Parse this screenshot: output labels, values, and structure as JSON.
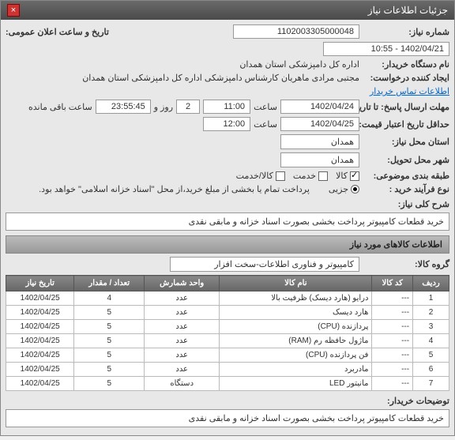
{
  "window": {
    "title": "جزئیات اطلاعات نیاز"
  },
  "fields": {
    "need_no_label": "شماره نیاز:",
    "need_no": "1102003305000048",
    "announce_label": "تاریخ و ساعت اعلان عمومی:",
    "announce_value": "1402/04/21 - 10:55",
    "buyer_org_label": "نام دستگاه خریدار:",
    "buyer_org": "اداره کل دامپزشکی استان همدان",
    "creator_label": "ایجاد کننده درخواست:",
    "creator": "مجتبی مرادی ماهریان کارشناس دامپزشکی اداره کل دامپزشکی استان همدان",
    "contact_link": "اطلاعات تماس خریدار",
    "reply_deadline_label": "مهلت ارسال پاسخ: تا تاریخ:",
    "reply_date": "1402/04/24",
    "time_label": "ساعت",
    "reply_time": "11:00",
    "days_remaining": "2",
    "days_label": "روز و",
    "remaining_time": "23:55:45",
    "remaining_label": "ساعت باقی مانده",
    "validity_label": "حداقل تاریخ اعتبار قیمت: تا تاریخ:",
    "validity_date": "1402/04/25",
    "validity_time": "12:00",
    "need_loc_label": "استان محل نیاز:",
    "need_loc": "همدان",
    "deliver_loc_label": "شهر محل تحویل:",
    "deliver_loc": "همدان",
    "category_label": "طبقه بندی موضوعی:",
    "cat_goods": "کالا",
    "cat_service": "خدمت",
    "cat_goods_service": "کالا/خدمت",
    "process_label": "نوع فرآیند خرید :",
    "proc_partial": "جزیی",
    "proc_note": "پرداخت تمام یا بخشی از مبلغ خرید،از محل \"اسناد خزانه اسلامی\" خواهد بود.",
    "desc_label": "شرح کلی نیاز:",
    "desc": "خرید قطعات کامپیوتر پرداخت بخشی بصورت اسناد خزانه و مابقی نقدی"
  },
  "goods_section": {
    "header": "اطلاعات کالاهای مورد نیاز",
    "group_label": "گروه کالا:",
    "group_value": "کامپیوتر و فناوری اطلاعات-سخت افزار"
  },
  "table": {
    "headers": {
      "row": "ردیف",
      "code": "کد کالا",
      "name": "نام کالا",
      "unit": "واحد شمارش",
      "qty": "تعداد / مقدار",
      "date": "تاریخ نیاز"
    },
    "rows": [
      {
        "row": "1",
        "code": "---",
        "name": "درایو (هارد دیسک) ظرفیت بالا",
        "unit": "عدد",
        "qty": "4",
        "date": "1402/04/25"
      },
      {
        "row": "2",
        "code": "---",
        "name": "هارد دیسک",
        "unit": "عدد",
        "qty": "5",
        "date": "1402/04/25"
      },
      {
        "row": "3",
        "code": "---",
        "name": "پردازنده (CPU)",
        "unit": "عدد",
        "qty": "5",
        "date": "1402/04/25"
      },
      {
        "row": "4",
        "code": "---",
        "name": "ماژول حافظه رم (RAM)",
        "unit": "عدد",
        "qty": "5",
        "date": "1402/04/25"
      },
      {
        "row": "5",
        "code": "---",
        "name": "فن پردازنده (CPU)",
        "unit": "عدد",
        "qty": "5",
        "date": "1402/04/25"
      },
      {
        "row": "6",
        "code": "---",
        "name": "مادربرد",
        "unit": "عدد",
        "qty": "5",
        "date": "1402/04/25"
      },
      {
        "row": "7",
        "code": "---",
        "name": "مانیتور LED",
        "unit": "دستگاه",
        "qty": "5",
        "date": "1402/04/25"
      }
    ]
  },
  "buyer_note": {
    "label": "توضیحات خریدار:",
    "text": "خرید قطعات کامپیوتر پرداخت بخشی بصورت اسناد خزانه و مابقی نقدی"
  }
}
